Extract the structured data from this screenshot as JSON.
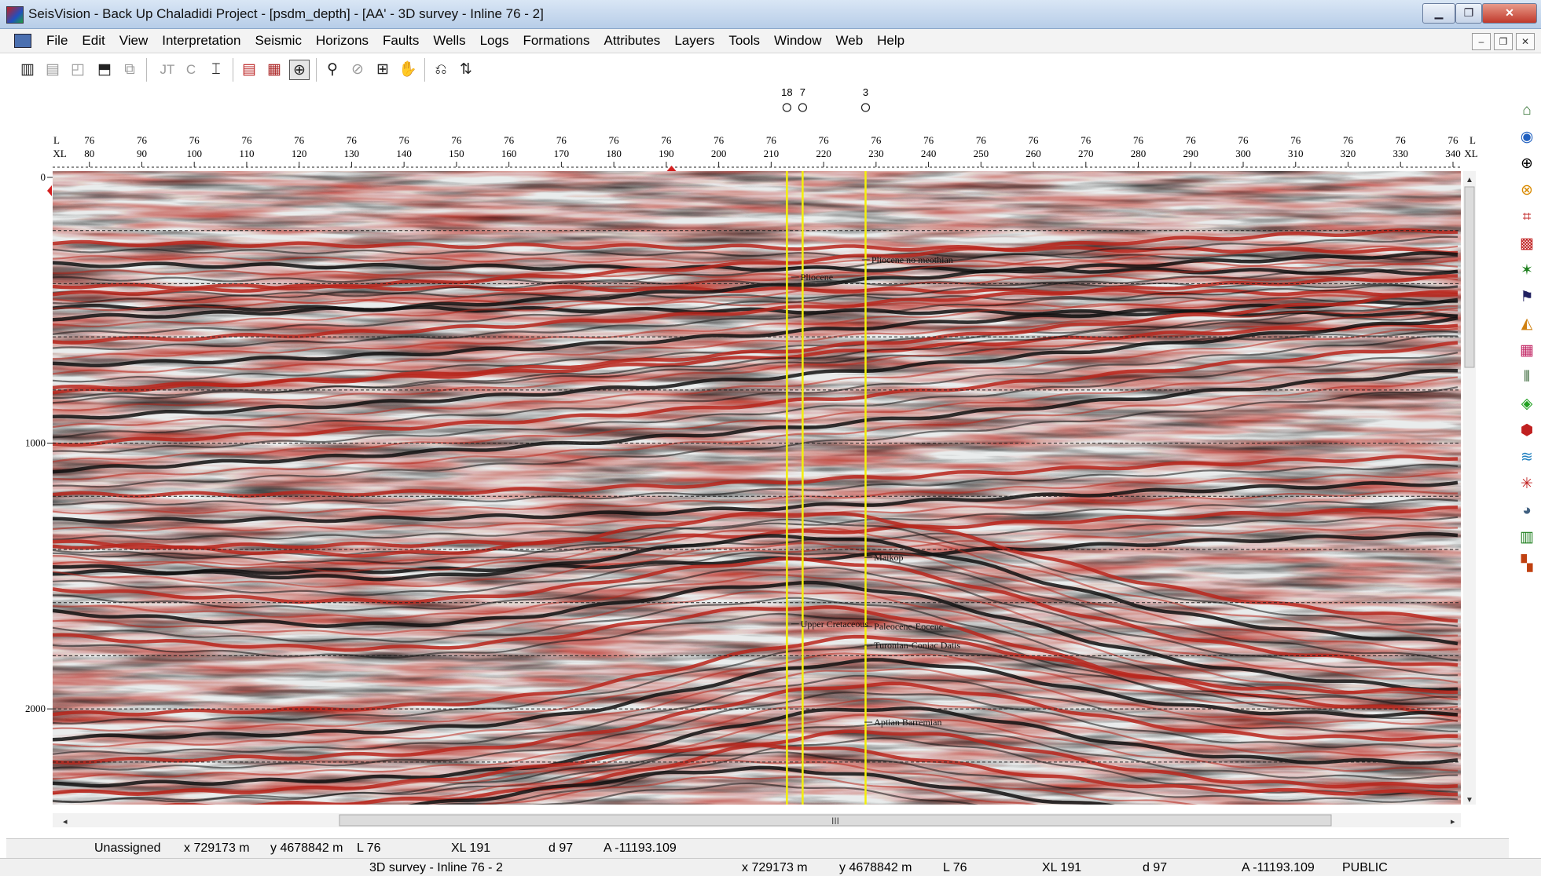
{
  "window": {
    "title": "SeisVision - Back Up Chaladidi Project - [psdm_depth] - [AA' - 3D survey - Inline 76 - 2]",
    "minimize_icon": "minimize-icon",
    "maximize_icon": "maximize-icon",
    "close_glyph": "✕"
  },
  "menu": {
    "items": [
      "File",
      "Edit",
      "View",
      "Interpretation",
      "Seismic",
      "Horizons",
      "Faults",
      "Wells",
      "Logs",
      "Formations",
      "Attributes",
      "Layers",
      "Tools",
      "Window",
      "Web",
      "Help"
    ]
  },
  "toolbar": {
    "text_buttons": [
      "JT",
      "C"
    ]
  },
  "section": {
    "axis_left_labels": [
      "L",
      "XL"
    ],
    "axis_right_labels": [
      "L",
      "XL"
    ],
    "inline_value": "76",
    "xl_ticks": [
      "80",
      "90",
      "100",
      "110",
      "120",
      "130",
      "140",
      "150",
      "160",
      "170",
      "180",
      "190",
      "200",
      "210",
      "220",
      "230",
      "240",
      "250",
      "260",
      "270",
      "280",
      "290",
      "300",
      "310",
      "320",
      "330",
      "340"
    ],
    "depth_ticks": [
      "0",
      "1000",
      "2000"
    ],
    "wells": [
      {
        "name": "18",
        "xl": 213
      },
      {
        "name": "7",
        "xl": 216
      },
      {
        "name": "3",
        "xl": 228
      }
    ],
    "horizons": [
      {
        "label": "Pliocene no meothian",
        "xl": 228.5,
        "depth": 310
      },
      {
        "label": "Pliocene",
        "xl": 215,
        "depth": 375
      },
      {
        "label": "Maikop",
        "xl": 229,
        "depth": 1430
      },
      {
        "label": "Upper Cretaceous",
        "xl": 215,
        "depth": 1680
      },
      {
        "label": "Paleocene-Eocene",
        "xl": 229,
        "depth": 1690
      },
      {
        "label": "Turonian-Coniac Datis",
        "xl": 229,
        "depth": 1760
      },
      {
        "label": "Aptian Barremian",
        "xl": 229,
        "depth": 2050
      }
    ],
    "scrollbar_grip": "III"
  },
  "status_bar": {
    "assignment": "Unassigned",
    "x": "x 729173 m",
    "y": "y 4678842 m",
    "inline": "L 76",
    "crossline": "XL 191",
    "depth": "d 97",
    "amplitude": "A -11193.109"
  },
  "bottom_bar": {
    "survey": "3D survey - Inline 76 - 2",
    "x": "x 729173 m",
    "y": "y 4678842 m",
    "inline": "L 76",
    "crossline": "XL 191",
    "depth": "d 97",
    "amplitude": "A -11193.109",
    "access": "PUBLIC"
  },
  "colors": {
    "positive": "#b8261c",
    "negative": "#111111",
    "background": "#e9ecec",
    "well": "#f4f00a",
    "grid_line": "#222222"
  }
}
